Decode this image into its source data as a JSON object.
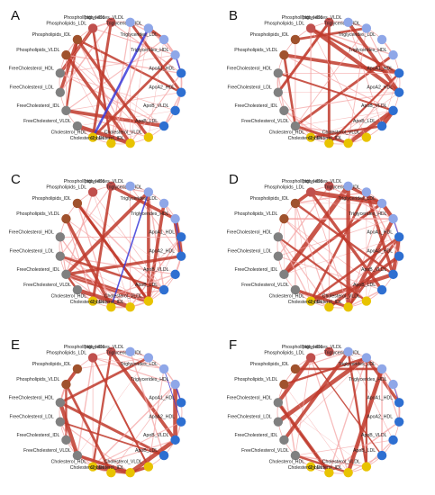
{
  "figure": {
    "node_labels": [
      "Phospholipids_HDL",
      "Phospholipids_LDL",
      "Phospholipids_IDL",
      "Phospholipids_VLDL",
      "FreeCholesterol_HDL",
      "FreeCholesterol_LDL",
      "FreeCholesterol_IDL",
      "FreeCholesterol_VLDL",
      "Cholesterol_HDL",
      "Cholesterol_LDL",
      "Cholesterol_IDL",
      "Cholesterol_VLDL",
      "ApoB_LDL",
      "ApoB_VLDL",
      "ApoA2_HDL",
      "ApoA1_HDL",
      "Triglycerides_HDL",
      "Triglycerides_LDL",
      "Triglycerides_IDL",
      "Triglycerides_VLDL"
    ],
    "node_colors": [
      "#c0504d",
      "#c0504d",
      "#a0522d",
      "#a0522d",
      "#808080",
      "#808080",
      "#808080",
      "#808080",
      "#e8c300",
      "#e8c300",
      "#e8c300",
      "#e8c300",
      "#2e6fd1",
      "#2e6fd1",
      "#2e6fd1",
      "#2e6fd1",
      "#8fa7e8",
      "#8fa7e8",
      "#8fa7e8",
      "#8fa7e8"
    ],
    "panels": [
      {
        "letter": "A"
      },
      {
        "letter": "B"
      },
      {
        "letter": "C"
      },
      {
        "letter": "D"
      },
      {
        "letter": "E"
      },
      {
        "letter": "F"
      }
    ],
    "edge_colors": {
      "positive": "#c0392b",
      "negative": "#3b3bd9",
      "weak": "#f4a6a6"
    }
  }
}
